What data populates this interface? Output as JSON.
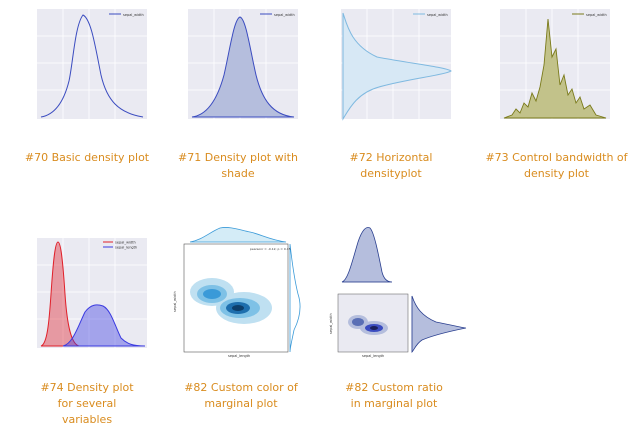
{
  "gallery": {
    "items": [
      {
        "caption": "#70 Basic density plot",
        "legend": [
          "sepal_width"
        ],
        "color": "#3b4cc0"
      },
      {
        "caption": "#71 Density plot with shade",
        "legend": [
          "sepal_width"
        ],
        "color": "#3b4cc0"
      },
      {
        "caption": "#72 Horizontal densityplot",
        "legend": [
          "sepal_width"
        ],
        "color": "#7fb9e0"
      },
      {
        "caption": "#73 Control bandwidth of density plot",
        "legend": [
          "sepal_width"
        ],
        "color": "#7a7a1a"
      },
      {
        "caption": "#74 Density plot for several variables",
        "legend": [
          "sepal_width",
          "sepal_length"
        ],
        "colors": [
          "#e0202a",
          "#3a3ae0"
        ]
      },
      {
        "caption": "#82 Custom color of marginal plot",
        "xlabel": "sepal_length",
        "ylabel": "sepal_width",
        "color": "#3a9ad8"
      },
      {
        "caption": "#82 Custom ratio in marginal plot",
        "xlabel": "sepal_length",
        "ylabel": "sepal_width",
        "color": "#2a3f8f"
      }
    ]
  }
}
